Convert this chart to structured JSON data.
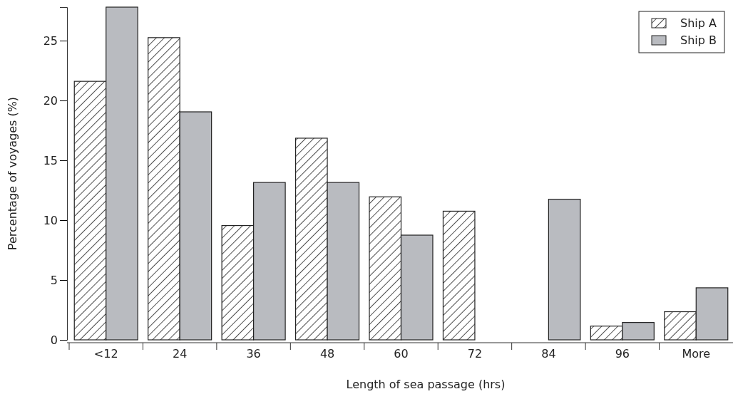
{
  "chart_data": {
    "type": "bar",
    "xlabel": "Length of sea passage (hrs)",
    "ylabel": "Percentage of voyages (%)",
    "categories": [
      "<12",
      "24",
      "36",
      "48",
      "60",
      "72",
      "84",
      "96",
      "More"
    ],
    "series": [
      {
        "name": "Ship A",
        "color": "#222222",
        "values": [
          21.6,
          25.25,
          9.55,
          16.85,
          11.95,
          10.75,
          0,
          1.15,
          2.35
        ]
      },
      {
        "name": "Ship B",
        "color": "#b9bbc0",
        "values": [
          27.8,
          19.05,
          13.15,
          13.15,
          8.75,
          0,
          11.75,
          1.45,
          4.35
        ]
      }
    ],
    "ylim": [
      0,
      27.8
    ],
    "yticks": [
      0,
      5,
      10,
      15,
      20,
      25
    ],
    "legend": "top right",
    "grid": false
  }
}
